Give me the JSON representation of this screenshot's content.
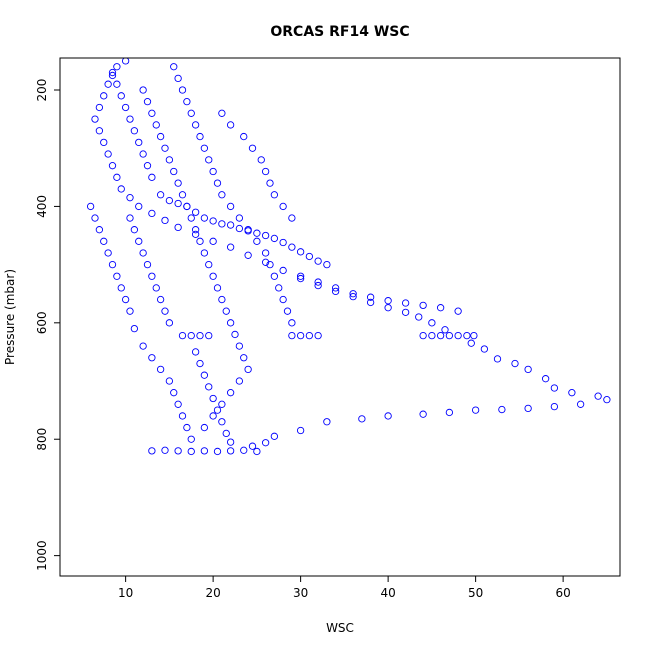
{
  "chart_data": {
    "type": "scatter",
    "title": "ORCAS RF14 WSC",
    "xlabel": "WSC",
    "ylabel": "Pressure (mbar)",
    "x_ticks": [
      10,
      20,
      30,
      40,
      50,
      60
    ],
    "y_ticks": [
      200,
      400,
      600,
      800,
      1000
    ],
    "xlim": [
      2.5,
      66.5
    ],
    "ylim": [
      1035,
      145
    ],
    "y_reversed": true,
    "grid": false,
    "legend": "none",
    "series": [
      {
        "color": "#0000ff",
        "marker": "open-circle",
        "points": [
          [
            13.0,
            820
          ],
          [
            14.5,
            819
          ],
          [
            16.0,
            820
          ],
          [
            17.5,
            821
          ],
          [
            19.0,
            820
          ],
          [
            20.5,
            821
          ],
          [
            22.0,
            820
          ],
          [
            23.5,
            819
          ],
          [
            25.0,
            821
          ],
          [
            24.5,
            812
          ],
          [
            26.0,
            806
          ],
          [
            27.0,
            795
          ],
          [
            30.0,
            785
          ],
          [
            33.0,
            770
          ],
          [
            37.0,
            765
          ],
          [
            40.0,
            760
          ],
          [
            44.0,
            757
          ],
          [
            47.0,
            754
          ],
          [
            50.0,
            750
          ],
          [
            53.0,
            749
          ],
          [
            56.0,
            747
          ],
          [
            59.0,
            744
          ],
          [
            62.0,
            740
          ],
          [
            65.0,
            732
          ],
          [
            64.0,
            726
          ],
          [
            61.0,
            720
          ],
          [
            59.0,
            712
          ],
          [
            58.0,
            696
          ],
          [
            56.0,
            680
          ],
          [
            54.5,
            670
          ],
          [
            52.5,
            662
          ],
          [
            51.0,
            645
          ],
          [
            49.5,
            635
          ],
          [
            48.0,
            622
          ],
          [
            46.5,
            612
          ],
          [
            45.0,
            600
          ],
          [
            43.5,
            590
          ],
          [
            42.0,
            582
          ],
          [
            40.0,
            574
          ],
          [
            38.0,
            565
          ],
          [
            36.0,
            555
          ],
          [
            34.0,
            546
          ],
          [
            32.0,
            536
          ],
          [
            30.0,
            524
          ],
          [
            28.0,
            510
          ],
          [
            26.0,
            496
          ],
          [
            24.0,
            484
          ],
          [
            22.0,
            470
          ],
          [
            20.0,
            460
          ],
          [
            18.0,
            448
          ],
          [
            16.0,
            436
          ],
          [
            14.5,
            424
          ],
          [
            13.0,
            412
          ],
          [
            11.5,
            400
          ],
          [
            10.5,
            385
          ],
          [
            9.5,
            370
          ],
          [
            9.0,
            350
          ],
          [
            8.5,
            330
          ],
          [
            8.0,
            310
          ],
          [
            7.5,
            290
          ],
          [
            7.0,
            270
          ],
          [
            6.5,
            250
          ],
          [
            7.0,
            230
          ],
          [
            7.5,
            210
          ],
          [
            8.0,
            190
          ],
          [
            8.5,
            175
          ],
          [
            9.0,
            160
          ],
          [
            10.0,
            150
          ],
          [
            44.0,
            622
          ],
          [
            45.0,
            622
          ],
          [
            46.0,
            622
          ],
          [
            47.0,
            622
          ],
          [
            49.0,
            622
          ],
          [
            49.8,
            622
          ],
          [
            29.0,
            622
          ],
          [
            30.0,
            622
          ],
          [
            31.0,
            622
          ],
          [
            32.0,
            622
          ],
          [
            16.5,
            622
          ],
          [
            17.5,
            622
          ],
          [
            18.5,
            622
          ],
          [
            19.5,
            622
          ],
          [
            29.0,
            600
          ],
          [
            28.5,
            580
          ],
          [
            28.0,
            560
          ],
          [
            27.5,
            540
          ],
          [
            27.0,
            520
          ],
          [
            26.5,
            500
          ],
          [
            26.0,
            480
          ],
          [
            25.0,
            460
          ],
          [
            24.0,
            440
          ],
          [
            23.0,
            420
          ],
          [
            22.0,
            400
          ],
          [
            21.0,
            380
          ],
          [
            20.5,
            360
          ],
          [
            20.0,
            340
          ],
          [
            19.5,
            320
          ],
          [
            19.0,
            300
          ],
          [
            18.5,
            280
          ],
          [
            18.0,
            260
          ],
          [
            17.5,
            240
          ],
          [
            17.0,
            220
          ],
          [
            16.5,
            200
          ],
          [
            16.0,
            180
          ],
          [
            15.5,
            160
          ],
          [
            21.0,
            240
          ],
          [
            22.0,
            260
          ],
          [
            23.5,
            280
          ],
          [
            24.5,
            300
          ],
          [
            25.5,
            320
          ],
          [
            26.0,
            340
          ],
          [
            26.5,
            360
          ],
          [
            27.0,
            380
          ],
          [
            28.0,
            400
          ],
          [
            29.0,
            420
          ],
          [
            15.0,
            600
          ],
          [
            14.5,
            580
          ],
          [
            14.0,
            560
          ],
          [
            13.5,
            540
          ],
          [
            13.0,
            520
          ],
          [
            12.5,
            500
          ],
          [
            12.0,
            480
          ],
          [
            11.5,
            460
          ],
          [
            11.0,
            440
          ],
          [
            10.5,
            420
          ],
          [
            18.0,
            650
          ],
          [
            18.5,
            670
          ],
          [
            19.0,
            690
          ],
          [
            19.5,
            710
          ],
          [
            20.0,
            730
          ],
          [
            20.5,
            750
          ],
          [
            21.0,
            770
          ],
          [
            21.5,
            790
          ],
          [
            22.0,
            805
          ],
          [
            11.0,
            610
          ],
          [
            12.0,
            640
          ],
          [
            13.0,
            660
          ],
          [
            14.0,
            680
          ],
          [
            15.0,
            700
          ],
          [
            15.5,
            720
          ],
          [
            16.0,
            740
          ],
          [
            16.5,
            760
          ],
          [
            17.0,
            780
          ],
          [
            17.5,
            800
          ],
          [
            13.0,
            350
          ],
          [
            12.5,
            330
          ],
          [
            12.0,
            310
          ],
          [
            11.5,
            290
          ],
          [
            11.0,
            270
          ],
          [
            10.5,
            250
          ],
          [
            10.0,
            230
          ],
          [
            9.5,
            210
          ],
          [
            9.0,
            190
          ],
          [
            8.5,
            170
          ],
          [
            12.0,
            200
          ],
          [
            12.5,
            220
          ],
          [
            13.0,
            240
          ],
          [
            13.5,
            260
          ],
          [
            14.0,
            280
          ],
          [
            14.5,
            300
          ],
          [
            15.0,
            320
          ],
          [
            15.5,
            340
          ],
          [
            16.0,
            360
          ],
          [
            16.5,
            380
          ],
          [
            17.0,
            400
          ],
          [
            17.5,
            420
          ],
          [
            18.0,
            440
          ],
          [
            18.5,
            460
          ],
          [
            19.0,
            480
          ],
          [
            19.5,
            500
          ],
          [
            20.0,
            520
          ],
          [
            20.5,
            540
          ],
          [
            21.0,
            560
          ],
          [
            21.5,
            580
          ],
          [
            22.0,
            600
          ],
          [
            22.5,
            620
          ],
          [
            23.0,
            640
          ],
          [
            23.5,
            660
          ],
          [
            24.0,
            680
          ],
          [
            23.0,
            700
          ],
          [
            22.0,
            720
          ],
          [
            21.0,
            740
          ],
          [
            20.0,
            760
          ],
          [
            19.0,
            780
          ],
          [
            30.0,
            520
          ],
          [
            32.0,
            530
          ],
          [
            34.0,
            540
          ],
          [
            36.0,
            550
          ],
          [
            38.0,
            556
          ],
          [
            40.0,
            562
          ],
          [
            42.0,
            566
          ],
          [
            44.0,
            570
          ],
          [
            46.0,
            574
          ],
          [
            48.0,
            580
          ],
          [
            14.0,
            380
          ],
          [
            15.0,
            390
          ],
          [
            16.0,
            395
          ],
          [
            17.0,
            400
          ],
          [
            18.0,
            410
          ],
          [
            19.0,
            420
          ],
          [
            20.0,
            425
          ],
          [
            21.0,
            430
          ],
          [
            22.0,
            432
          ],
          [
            23.0,
            438
          ],
          [
            24.0,
            442
          ],
          [
            25.0,
            446
          ],
          [
            26.0,
            450
          ],
          [
            27.0,
            455
          ],
          [
            28.0,
            462
          ],
          [
            29.0,
            470
          ],
          [
            30.0,
            478
          ],
          [
            31.0,
            486
          ],
          [
            32.0,
            494
          ],
          [
            33.0,
            500
          ],
          [
            6.0,
            400
          ],
          [
            6.5,
            420
          ],
          [
            7.0,
            440
          ],
          [
            7.5,
            460
          ],
          [
            8.0,
            480
          ],
          [
            8.5,
            500
          ],
          [
            9.0,
            520
          ],
          [
            9.5,
            540
          ],
          [
            10.0,
            560
          ],
          [
            10.5,
            580
          ]
        ]
      }
    ]
  }
}
